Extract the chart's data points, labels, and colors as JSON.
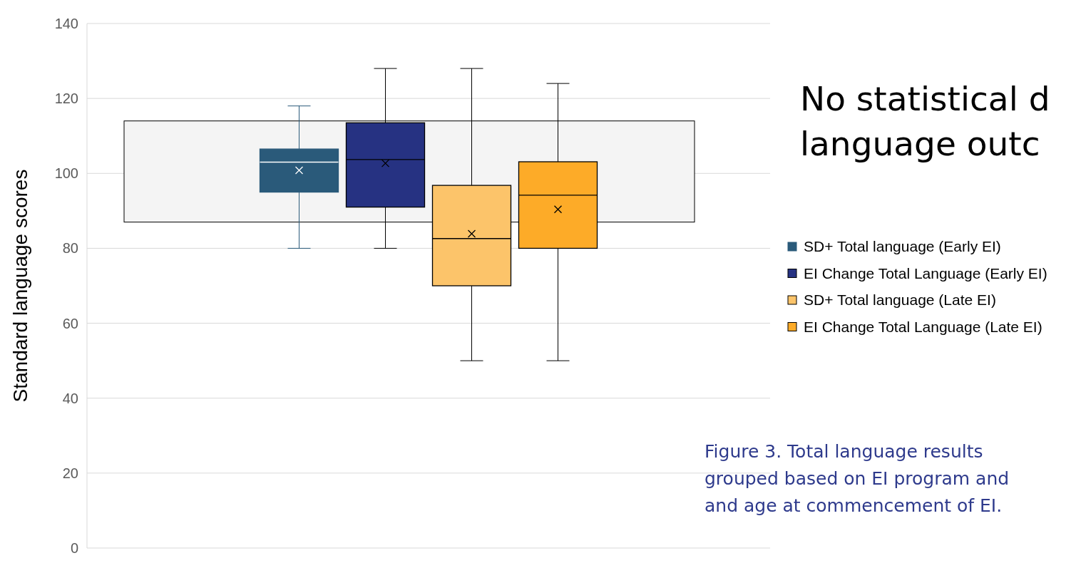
{
  "chart_data": {
    "type": "box",
    "ylabel": "Standard language scores",
    "categories": [
      null
    ],
    "ylim": [
      0,
      140
    ],
    "yticks": [
      0,
      20,
      40,
      60,
      80,
      100,
      120,
      140
    ],
    "grid": "y",
    "legend": "right",
    "marker": "cross",
    "series": [
      {
        "name": "SD+ Total language (Early EI)",
        "color": "#2a5a7a",
        "boxes": [
          {
            "low": 80,
            "q1": 95,
            "median": 103,
            "q3": 106.5,
            "high": 118,
            "mean": 100.8
          }
        ]
      },
      {
        "name": "EI Change Total Language (Early EI)",
        "color": "#263282",
        "boxes": [
          {
            "low": 80,
            "q1": 91,
            "median": 103.7,
            "q3": 113.5,
            "high": 128,
            "mean": 102.7
          }
        ]
      },
      {
        "name": "SD+ Total language (Late EI)",
        "color": "#fcc46a",
        "boxes": [
          {
            "low": 50,
            "q1": 70,
            "median": 82.6,
            "q3": 96.8,
            "high": 128,
            "mean": 83.9
          }
        ]
      },
      {
        "name": "EI Change Total Language (Late EI)",
        "color": "#fdab28",
        "boxes": [
          {
            "low": 50,
            "q1": 80,
            "median": 94.2,
            "q3": 103.1,
            "high": 124,
            "mean": 90.4
          }
        ]
      }
    ],
    "bands": [
      {
        "axis": "y",
        "from": 87,
        "to": 114,
        "color": "#f4f4f4"
      }
    ],
    "annotations": [
      "No statistical d",
      "language outc",
      "Figure 3. Total language results grouped based on EI program and and age at commencement of EI."
    ]
  }
}
